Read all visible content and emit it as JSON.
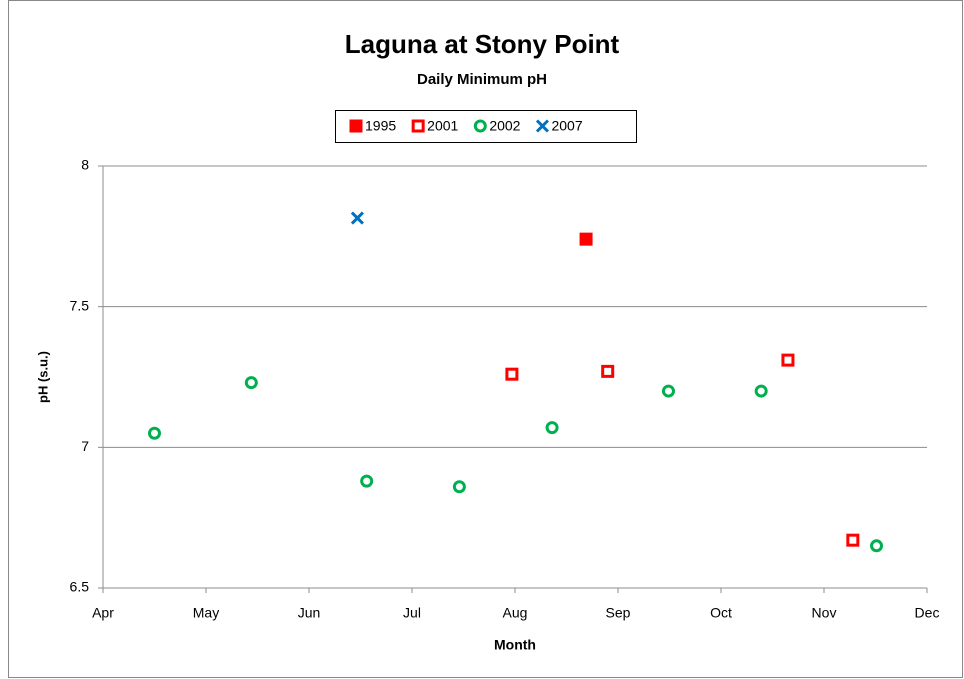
{
  "chart_data": {
    "type": "scatter",
    "title": "Laguna at Stony Point",
    "subtitle": "Daily Minimum pH",
    "x_label": "Month",
    "y_label": "pH (s.u.)",
    "xlim": [
      4,
      12
    ],
    "xticks": [
      {
        "value": 4,
        "label": "Apr"
      },
      {
        "value": 5,
        "label": "May"
      },
      {
        "value": 6,
        "label": "Jun"
      },
      {
        "value": 7,
        "label": "Jul"
      },
      {
        "value": 8,
        "label": "Aug"
      },
      {
        "value": 9,
        "label": "Sep"
      },
      {
        "value": 10,
        "label": "Oct"
      },
      {
        "value": 11,
        "label": "Nov"
      },
      {
        "value": 12,
        "label": "Dec"
      }
    ],
    "ylim": [
      6.5,
      8
    ],
    "yticks": [
      6.5,
      7,
      7.5,
      8
    ],
    "grid": true,
    "legend": "top",
    "series": [
      {
        "name": "1995",
        "color": "#ff0000",
        "marker": "square-filled",
        "x": [
          8.69
        ],
        "values": [
          7.74
        ]
      },
      {
        "name": "2001",
        "color": "#ff0000",
        "marker": "square",
        "x": [
          7.97,
          8.9,
          10.65,
          11.28
        ],
        "values": [
          7.26,
          7.27,
          7.31,
          6.67
        ]
      },
      {
        "name": "2002",
        "color": "#00b050",
        "marker": "circle",
        "x": [
          4.5,
          5.44,
          6.56,
          7.46,
          8.36,
          9.49,
          10.39,
          11.51
        ],
        "values": [
          7.05,
          7.23,
          6.88,
          6.86,
          7.07,
          7.2,
          7.2,
          6.65
        ]
      },
      {
        "name": "2007",
        "color": "#0070c0",
        "marker": "x",
        "x": [
          6.47
        ],
        "values": [
          7.815
        ]
      }
    ]
  }
}
